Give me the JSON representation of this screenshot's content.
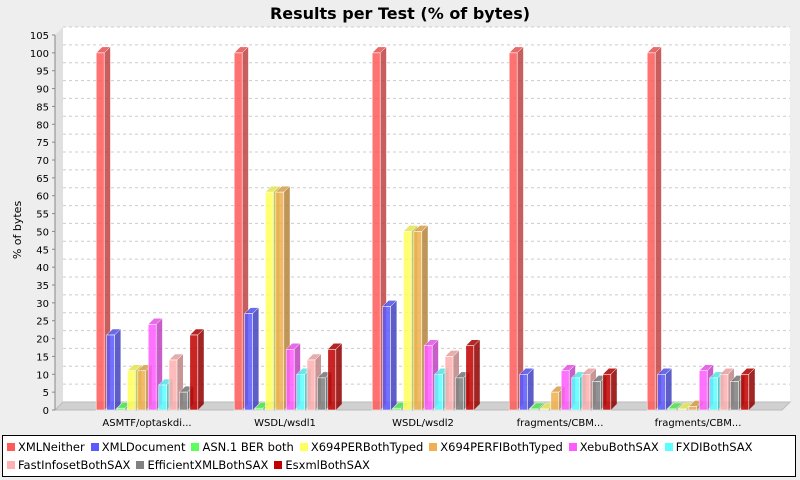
{
  "chart_data": {
    "type": "bar",
    "title": "Results per Test (% of bytes)",
    "xlabel": "",
    "ylabel": "% of bytes",
    "ylim": [
      0,
      105
    ],
    "yticks": [
      "0",
      "5",
      "10",
      "15",
      "20",
      "25",
      "30",
      "35",
      "40",
      "45",
      "50",
      "55",
      "60",
      "65",
      "70",
      "75",
      "80",
      "85",
      "90",
      "95",
      "100",
      "105"
    ],
    "grid": true,
    "legend_position": "bottom",
    "categories": [
      "ASMTF/optaskdi...",
      "WSDL/wsdl1",
      "WSDL/wsdl2",
      "fragments/CBM...",
      "fragments/CBM..."
    ],
    "series": [
      {
        "name": "XMLNeither",
        "color": "#ff5a5a",
        "values": [
          100,
          100,
          100,
          100,
          100
        ]
      },
      {
        "name": "XMLDocument",
        "color": "#5a5aff",
        "values": [
          21,
          27,
          29,
          10,
          10
        ]
      },
      {
        "name": "ASN.1 BER both",
        "color": "#5aff5a",
        "values": [
          0.5,
          0.5,
          0.5,
          0.3,
          0.3
        ]
      },
      {
        "name": "X694PERBothTyped",
        "color": "#ffff5a",
        "values": [
          11,
          61,
          50,
          0.3,
          0.3
        ]
      },
      {
        "name": "X694PERFIBothTyped",
        "color": "#f0b050",
        "values": [
          11,
          61,
          50,
          5,
          1
        ]
      },
      {
        "name": "XebuBothSAX",
        "color": "#ff5aff",
        "values": [
          24,
          17,
          18,
          11,
          11
        ]
      },
      {
        "name": "FXDIBothSAX",
        "color": "#5affff",
        "values": [
          7,
          10,
          10,
          9,
          9
        ]
      },
      {
        "name": "FastInfosetBothSAX",
        "color": "#ffb0b0",
        "values": [
          14,
          14,
          15,
          10,
          10
        ]
      },
      {
        "name": "EfficientXMLBothSAX",
        "color": "#808080",
        "values": [
          5,
          9,
          9,
          8,
          8
        ]
      },
      {
        "name": "EsxmlBothSAX",
        "color": "#c00000",
        "values": [
          21,
          17,
          18,
          10,
          10
        ]
      }
    ]
  }
}
